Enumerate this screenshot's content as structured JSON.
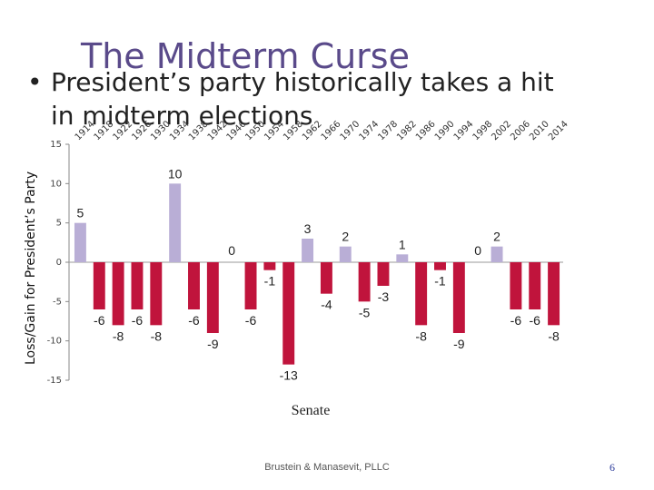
{
  "slide": {
    "title": "The Midterm Curse",
    "bullet_marker": "•",
    "bullet": "President’s party historically takes a hit in midterm elections",
    "footer": "Brustein & Manasevit, PLLC",
    "page_number": "6"
  },
  "colors": {
    "gain": "#b9aed6",
    "loss": "#c0143c",
    "axis": "#888888"
  },
  "chart_data": {
    "type": "bar",
    "title": "",
    "xlabel": "Senate",
    "ylabel": "Loss/Gain for President’s Party",
    "ylim": [
      -15,
      15
    ],
    "yticks": [
      15,
      10,
      5,
      0,
      -5,
      -10,
      -15
    ],
    "grid": false,
    "categories": [
      "1914",
      "1918",
      "1922",
      "1926",
      "1930",
      "1934",
      "1938",
      "1942",
      "1946",
      "1950",
      "1954",
      "1958",
      "1962",
      "1966",
      "1970",
      "1974",
      "1978",
      "1982",
      "1986",
      "1990",
      "1994",
      "1998",
      "2002",
      "2006",
      "2010",
      "2014"
    ],
    "values": [
      5,
      -6,
      -8,
      -6,
      -8,
      10,
      -6,
      -9,
      0,
      -6,
      -1,
      -13,
      3,
      -4,
      2,
      -5,
      -3,
      1,
      -8,
      -1,
      -9,
      0,
      2,
      -6,
      -6,
      -8
    ]
  }
}
